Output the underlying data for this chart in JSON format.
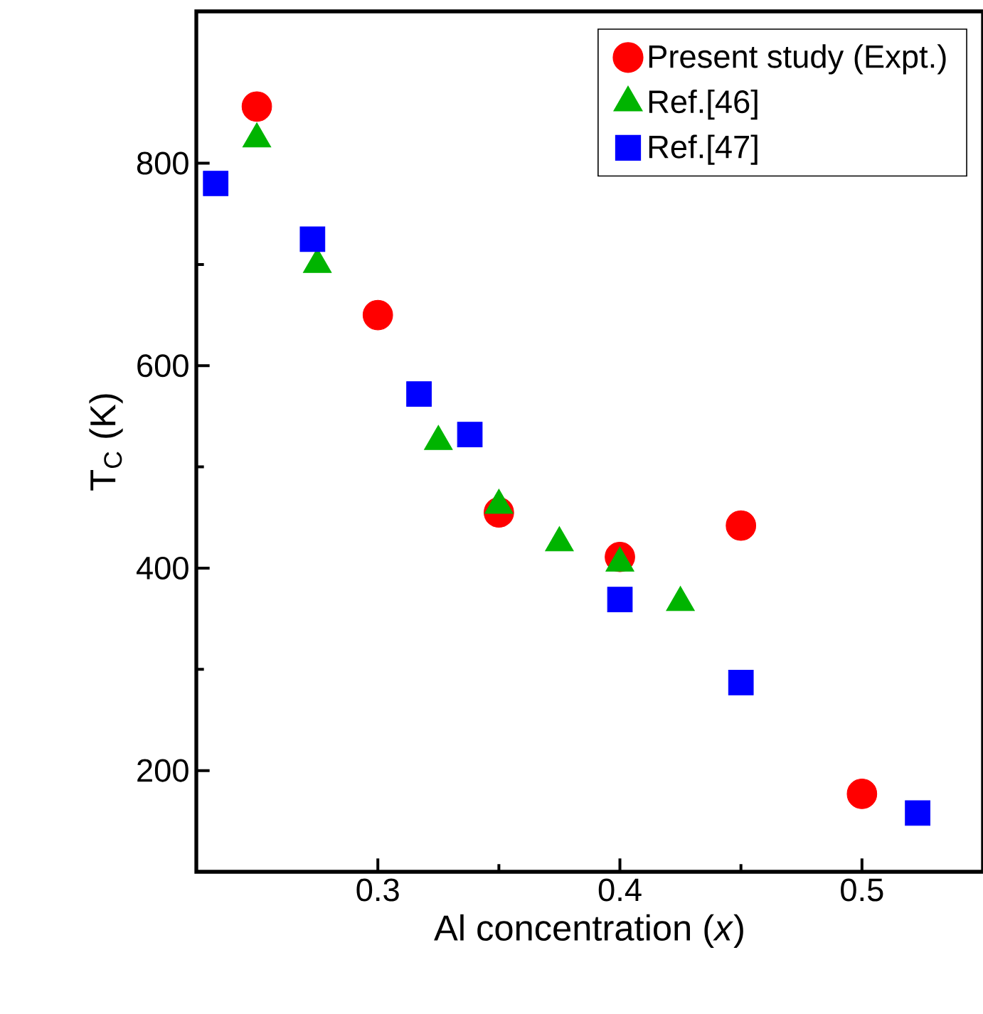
{
  "chart_data": {
    "type": "scatter",
    "xlabel": "Al concentration (*x*)",
    "ylabel": "T$_{C}$ (K)",
    "xlim": [
      0.225,
      0.55
    ],
    "ylim": [
      100,
      950
    ],
    "xticks": [
      0.3,
      0.4,
      0.5
    ],
    "yticks": [
      200,
      400,
      600,
      800
    ],
    "legend": "top right",
    "grid": false,
    "series": [
      {
        "name": "Present study (Expt.)",
        "color": "#ff0000",
        "marker": "circle",
        "x": [
          0.25,
          0.3,
          0.35,
          0.4,
          0.45,
          0.5
        ],
        "values": [
          856,
          650,
          455,
          411,
          442,
          177
        ]
      },
      {
        "name": "Ref.[46]",
        "color": "#00b400",
        "marker": "triangle",
        "x": [
          0.25,
          0.275,
          0.325,
          0.35,
          0.375,
          0.4,
          0.425
        ],
        "values": [
          824,
          700,
          525,
          462,
          425,
          405,
          366
        ]
      },
      {
        "name": "Ref.[47]",
        "color": "#0000ff",
        "marker": "square",
        "x": [
          0.233,
          0.273,
          0.317,
          0.338,
          0.4,
          0.45,
          0.523
        ],
        "values": [
          780,
          725,
          572,
          532,
          369,
          287,
          158
        ]
      }
    ]
  }
}
